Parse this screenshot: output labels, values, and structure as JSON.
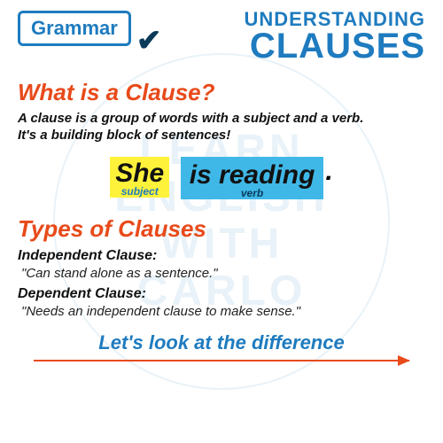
{
  "watermark": {
    "l1": "LEARN",
    "l2": "ENGLISH",
    "l3": "WITH",
    "l4": "CARLO"
  },
  "badge": {
    "label": "Grammar"
  },
  "title": {
    "small": "UNDERSTANDING",
    "big": "CLAUSES"
  },
  "section1": {
    "heading": "What is a Clause?",
    "intro1": "A clause is a group of words with a subject and a verb.",
    "intro2": "It's a building block of sentences!"
  },
  "example": {
    "subject_word": "She",
    "subject_label": "subject",
    "verb_word": "is reading",
    "verb_label": "verb",
    "period": ".",
    "subject_bg": "#fff23a",
    "verb_bg": "#3fb8e8"
  },
  "section2": {
    "heading": "Types of Clauses",
    "type1_title": "Independent Clause:",
    "type1_desc": "\"Can stand alone as a sentence.\"",
    "type2_title": "Dependent Clause:",
    "type2_desc": "\"Needs an independent clause to make sense.\""
  },
  "footer": {
    "text": "Let's look at the difference"
  },
  "colors": {
    "blue": "#1e7bbf",
    "orange": "#e84a1a",
    "darknavy": "#0a3a5a",
    "yellow": "#fff23a",
    "cyan": "#3fb8e8",
    "watermark": "#e8f2f8"
  }
}
